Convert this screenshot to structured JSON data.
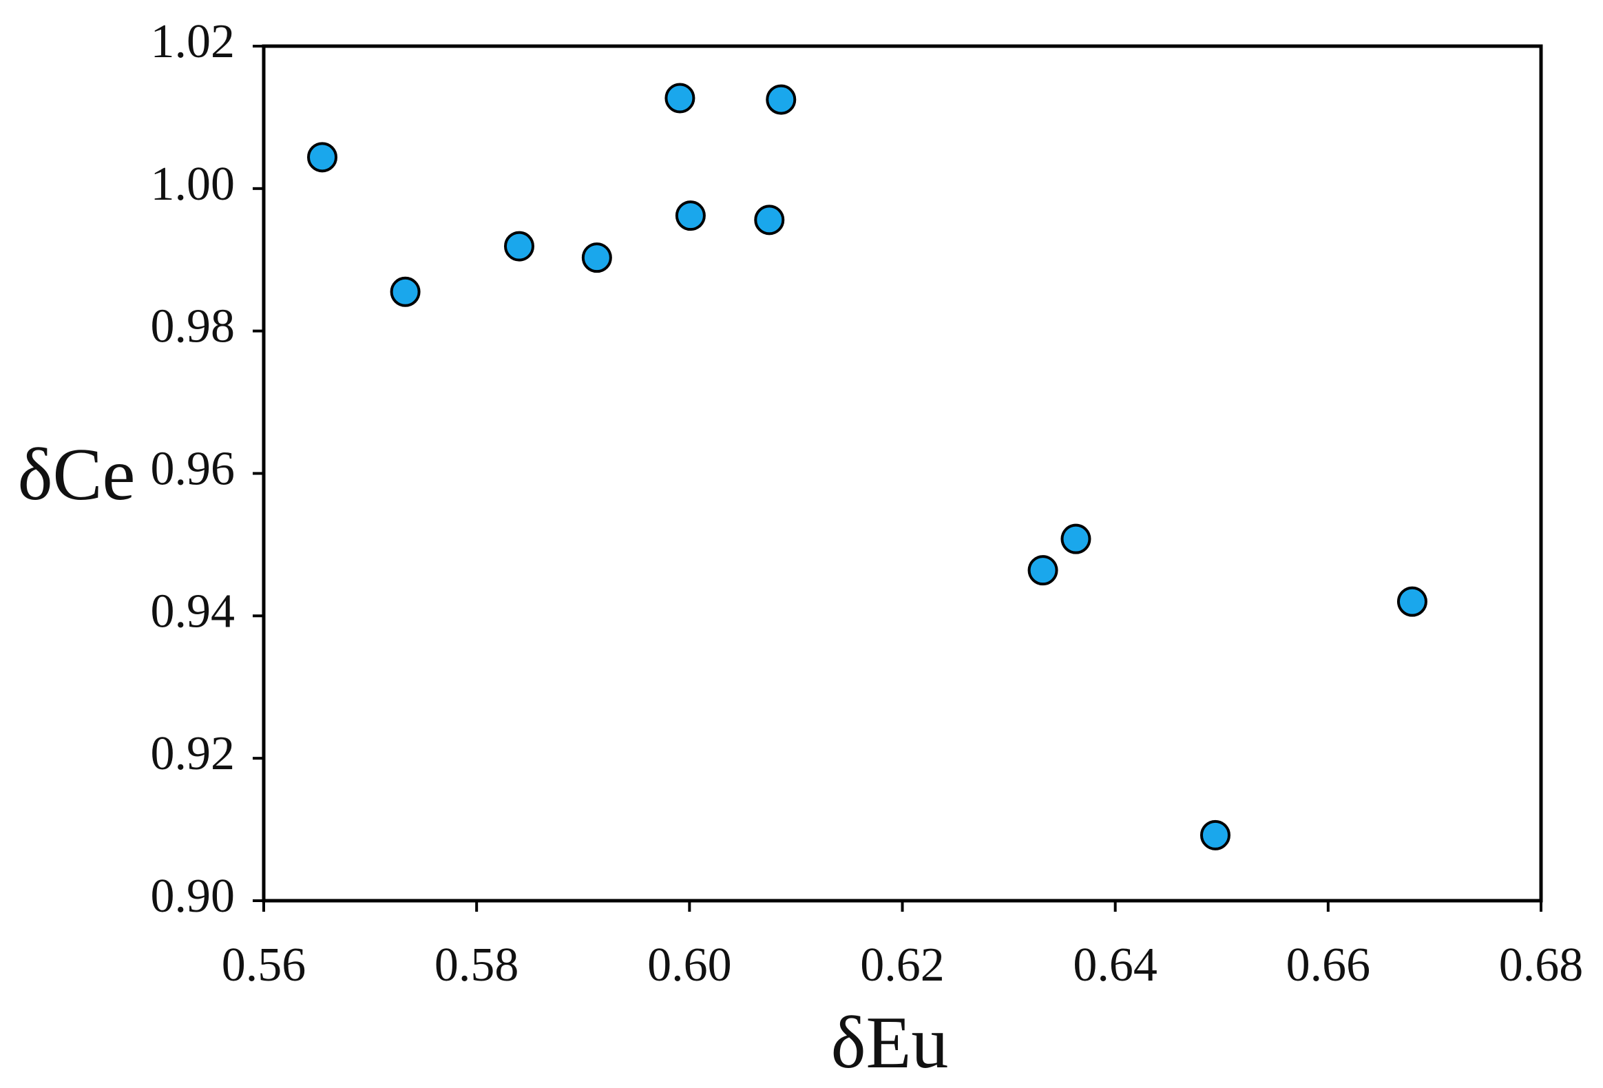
{
  "chart_data": {
    "type": "scatter",
    "x_label": "δEu",
    "y_label": "δCe",
    "series": [
      {
        "color": "#1aa7ec",
        "x": [
          0.5655,
          0.5733,
          0.584,
          0.5913,
          0.5991,
          0.6001,
          0.6075,
          0.6086,
          0.6332,
          0.6363,
          0.6494,
          0.6679
        ],
        "values": [
          1.0044,
          0.9855,
          0.9919,
          0.9903,
          1.0127,
          0.9962,
          0.9956,
          1.0125,
          0.9464,
          0.9508,
          0.9092,
          0.942
        ]
      }
    ],
    "xlim": [
      0.56,
      0.68
    ],
    "xticks": [
      0.56,
      0.58,
      {
        "value": 0.6,
        "label": "0.60"
      },
      0.62,
      0.64,
      0.66,
      0.68
    ],
    "ylim": [
      0.9,
      1.02
    ],
    "yticks": [
      {
        "value": 0.9,
        "label": "0.90"
      },
      0.92,
      0.94,
      0.96,
      0.98,
      {
        "value": 1,
        "label": "1.00"
      },
      1.02
    ],
    "grid": false
  }
}
